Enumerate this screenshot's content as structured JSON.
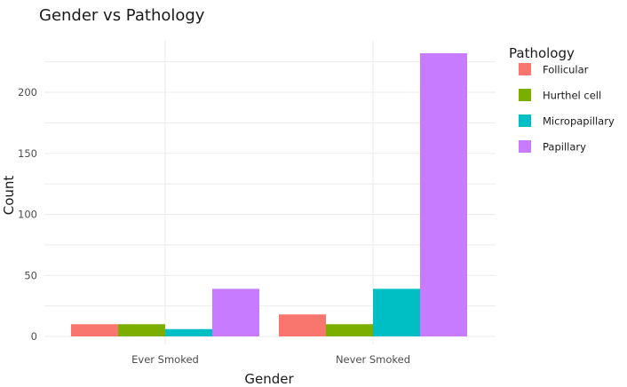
{
  "chart_data": {
    "type": "bar",
    "title": "Gender vs Pathology",
    "xlabel": "Gender",
    "ylabel": "Count",
    "categories": [
      "Ever Smoked",
      "Never Smoked"
    ],
    "ylim": [
      0,
      240
    ],
    "yticks": [
      0,
      50,
      100,
      150,
      200
    ],
    "grid": true,
    "legend": {
      "title": "Pathology",
      "position": "right"
    },
    "series": [
      {
        "name": "Follicular",
        "color": "#F8766D",
        "values": [
          10,
          18
        ]
      },
      {
        "name": "Hurthel cell",
        "color": "#7CAE00",
        "values": [
          10,
          10
        ]
      },
      {
        "name": "Micropapillary",
        "color": "#00BFC4",
        "values": [
          6,
          39
        ]
      },
      {
        "name": "Papillary",
        "color": "#C77CFF",
        "values": [
          39,
          232
        ]
      }
    ]
  }
}
